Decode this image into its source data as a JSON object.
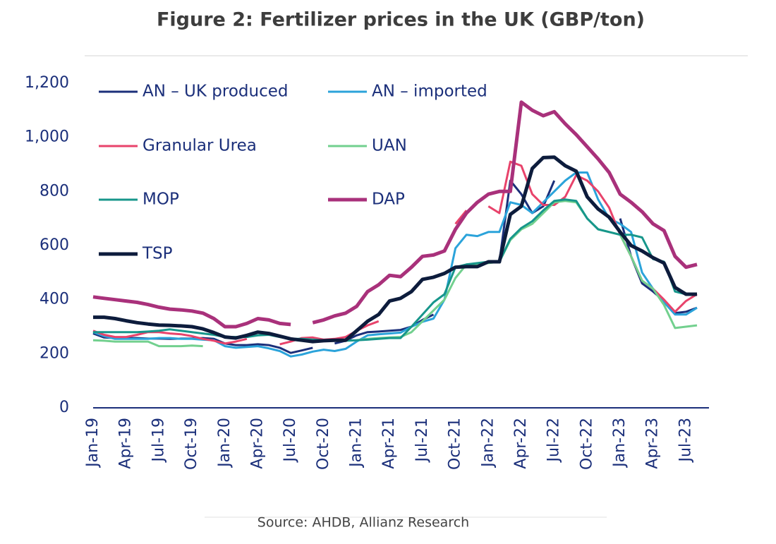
{
  "chart_data": {
    "type": "line",
    "title": "Figure 2: Fertilizer prices in the UK (GBP/ton)",
    "source": "Source: AHDB, Allianz Research",
    "categories": [
      "Jan-19",
      null,
      null,
      "Apr-19",
      null,
      null,
      "Jul-19",
      null,
      null,
      "Oct-19",
      null,
      null,
      "Jan-20",
      null,
      null,
      "Apr-20",
      null,
      null,
      "Jul-20",
      null,
      null,
      "Oct-20",
      null,
      null,
      "Jan-21",
      null,
      null,
      "Apr-21",
      null,
      null,
      "Jul-21",
      null,
      null,
      "Oct-21",
      null,
      null,
      "Jan-22",
      null,
      null,
      "Apr-22",
      null,
      null,
      "Jul-22",
      null,
      null,
      "Oct-22",
      null,
      null,
      "Jan-23",
      null,
      null,
      "Apr-23",
      null,
      null,
      "Jul-23",
      null
    ],
    "ylim": [
      0,
      1200
    ],
    "yticks": [
      0,
      200,
      400,
      600,
      800,
      {
        "value": 1000,
        "label": "1,000"
      },
      {
        "value": 1200,
        "label": "1,200"
      }
    ],
    "grid": false,
    "series": [
      {
        "name": "AN – UK produced",
        "color": "#1b2f7a",
        "width": 3,
        "values": [
          275,
          260,
          258,
          258,
          258,
          256,
          256,
          255,
          256,
          256,
          258,
          255,
          238,
          232,
          232,
          235,
          232,
          222,
          203,
          212,
          222,
          null,
          238,
          248,
          268,
          280,
          282,
          285,
          288,
          300,
          325,
          345,
          null,
          null,
          null,
          null,
          null,
          540,
          840,
          790,
          720,
          745,
          840,
          null,
          null,
          null,
          null,
          null,
          700,
          560,
          460,
          430,
          395,
          350,
          355,
          370
        ]
      },
      {
        "name": "AN – imported",
        "color": "#2ba3da",
        "width": 3,
        "values": [
          280,
          265,
          255,
          255,
          255,
          255,
          258,
          258,
          255,
          255,
          252,
          250,
          228,
          222,
          225,
          228,
          220,
          210,
          190,
          197,
          208,
          215,
          210,
          218,
          245,
          268,
          272,
          275,
          278,
          300,
          318,
          330,
          400,
          590,
          640,
          635,
          650,
          650,
          760,
          750,
          720,
          760,
          800,
          840,
          870,
          870,
          770,
          700,
          680,
          650,
          500,
          440,
          390,
          345,
          345,
          370
        ]
      },
      {
        "name": "Granular Urea",
        "color": "#e8436b",
        "width": 3,
        "values": [
          285,
          270,
          262,
          262,
          270,
          280,
          280,
          275,
          272,
          265,
          255,
          248,
          238,
          245,
          255,
          null,
          null,
          235,
          245,
          258,
          260,
          252,
          255,
          262,
          285,
          305,
          320,
          null,
          null,
          null,
          null,
          null,
          null,
          680,
          730,
          null,
          745,
          720,
          910,
          895,
          790,
          750,
          750,
          780,
          860,
          840,
          800,
          740,
          640,
          560,
          470,
          440,
          400,
          355,
          395,
          420
        ]
      },
      {
        "name": "UAN",
        "color": "#72d08e",
        "width": 3,
        "values": [
          250,
          248,
          245,
          245,
          245,
          245,
          228,
          228,
          228,
          230,
          228,
          null,
          null,
          null,
          null,
          null,
          null,
          null,
          null,
          null,
          null,
          null,
          null,
          null,
          250,
          255,
          258,
          260,
          262,
          280,
          320,
          360,
          400,
          480,
          530,
          530,
          535,
          540,
          620,
          660,
          680,
          720,
          760,
          765,
          760,
          700,
          660,
          650,
          640,
          560,
          470,
          440,
          380,
          295,
          300,
          305
        ]
      },
      {
        "name": "MOP",
        "color": "#17968b",
        "width": 3,
        "values": [
          280,
          280,
          280,
          280,
          280,
          282,
          285,
          290,
          285,
          280,
          275,
          270,
          262,
          262,
          262,
          268,
          270,
          262,
          255,
          255,
          252,
          250,
          250,
          248,
          250,
          252,
          255,
          258,
          258,
          300,
          345,
          390,
          420,
          520,
          530,
          535,
          540,
          540,
          625,
          665,
          690,
          730,
          765,
          770,
          765,
          700,
          660,
          650,
          640,
          640,
          630,
          550,
          540,
          430,
          420,
          420
        ]
      },
      {
        "name": "DAP",
        "color": "#a9317b",
        "width": 5,
        "values": [
          410,
          405,
          400,
          395,
          390,
          382,
          372,
          365,
          362,
          358,
          350,
          330,
          300,
          300,
          312,
          330,
          325,
          312,
          308,
          null,
          315,
          325,
          340,
          350,
          375,
          430,
          455,
          490,
          485,
          520,
          560,
          565,
          580,
          660,
          720,
          760,
          790,
          800,
          800,
          1130,
          1100,
          1080,
          1095,
          1050,
          1010,
          965,
          920,
          870,
          790,
          760,
          725,
          680,
          655,
          560,
          520,
          530
        ]
      },
      {
        "name": "TSP",
        "color": "#0d1c3c",
        "width": 5,
        "values": [
          335,
          335,
          330,
          322,
          315,
          310,
          306,
          305,
          303,
          300,
          292,
          278,
          262,
          258,
          268,
          280,
          275,
          265,
          255,
          250,
          245,
          248,
          250,
          250,
          285,
          320,
          345,
          395,
          405,
          430,
          475,
          483,
          497,
          520,
          522,
          522,
          540,
          540,
          715,
          745,
          885,
          925,
          927,
          895,
          875,
          780,
          735,
          705,
          650,
          600,
          580,
          555,
          535,
          445,
          420,
          420
        ]
      }
    ]
  }
}
